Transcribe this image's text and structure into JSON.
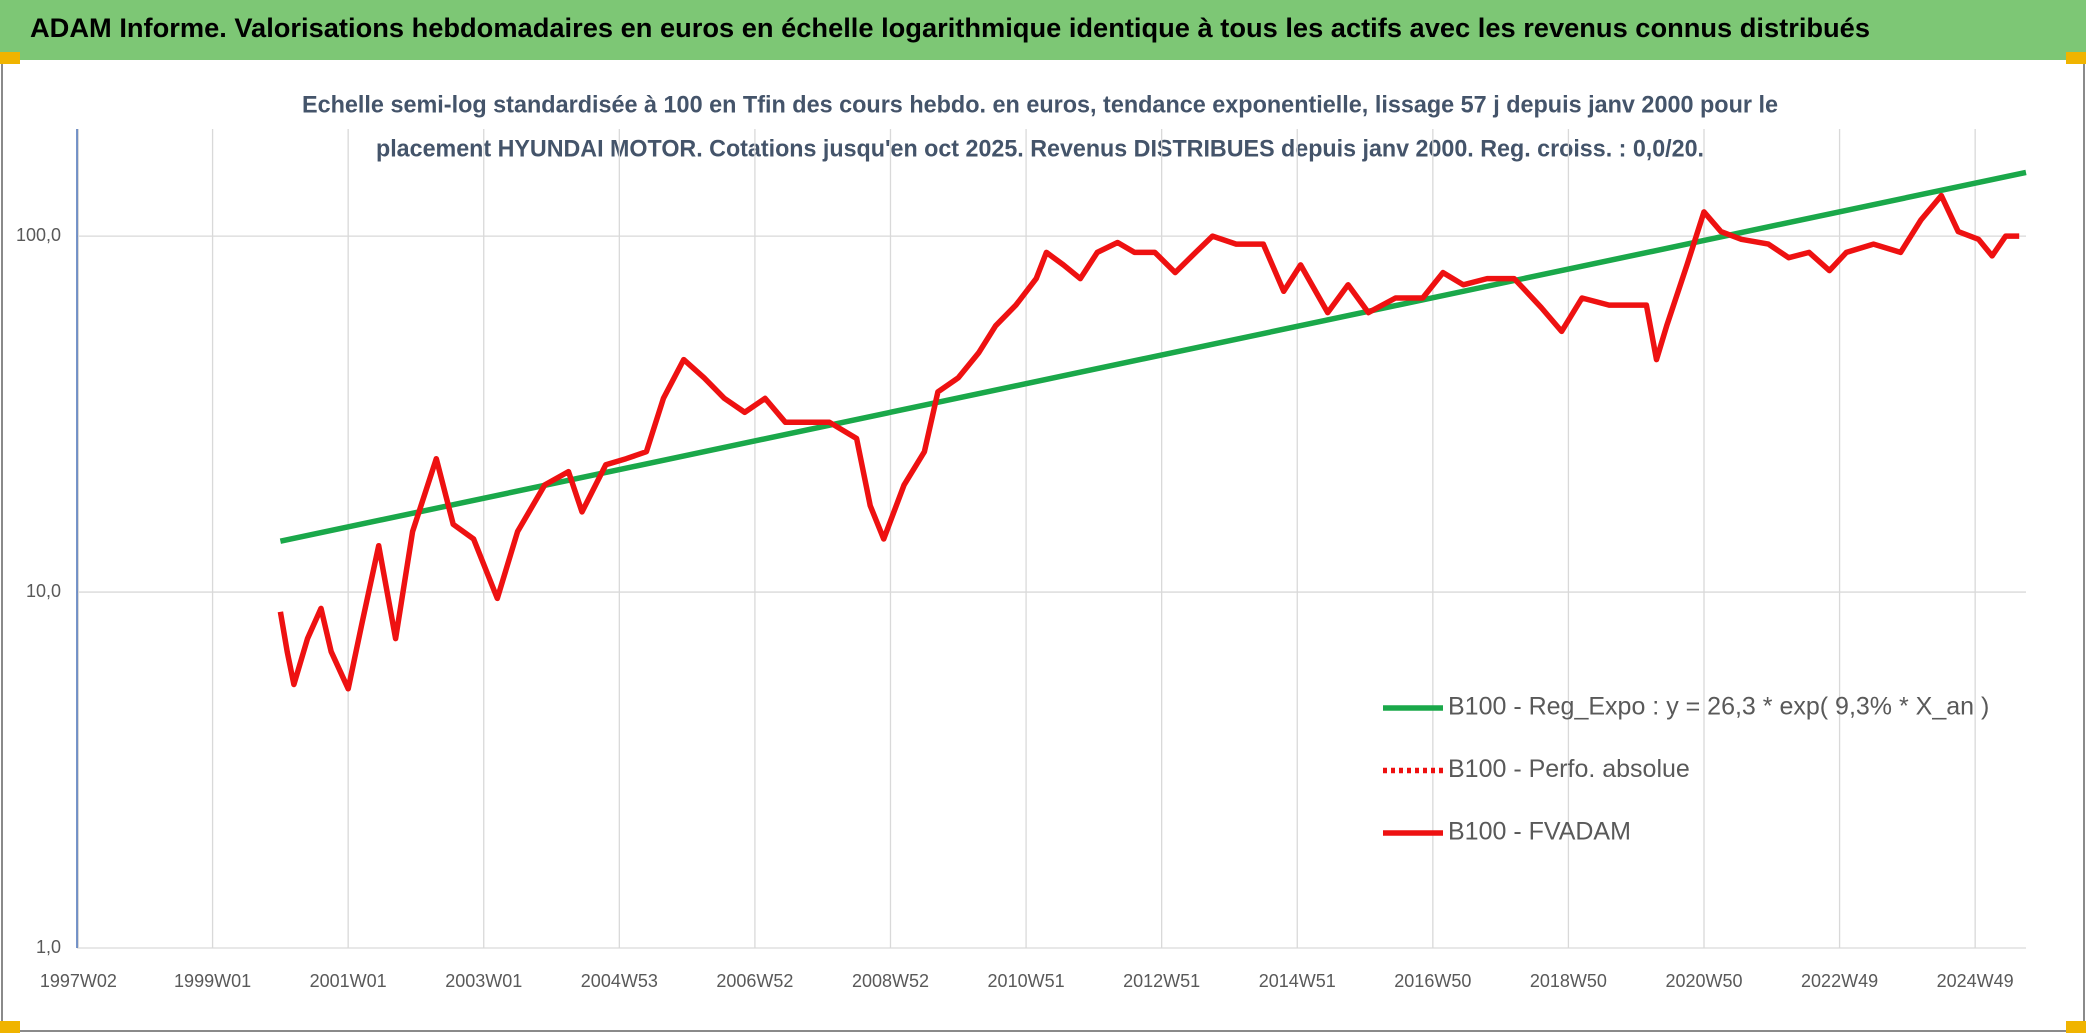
{
  "chart_data": {
    "type": "line",
    "title": "ADAM Informe. Valorisations hebdomadaires en euros en échelle logarithmique identique à tous les actifs avec les revenus connus distribués",
    "subtitle": [
      "Echelle semi-log standardisée à 100 en Tfin des cours hebdo. en euros, tendance exponentielle, lissage 57 j depuis janv 2000 pour le",
      "placement HYUNDAI MOTOR. Cotations jusqu'en oct 2025. Revenus DISTRIBUES depuis janv 2000. Reg. croiss. : 0,0/20."
    ],
    "log_scale": true,
    "grid": true,
    "legend_position": "lower-right",
    "xlim": [
      1997.0,
      2025.75
    ],
    "xticks": [
      {
        "value": 1997.02,
        "label": "1997W02"
      },
      {
        "value": 1999.0,
        "label": "1999W01"
      },
      {
        "value": 2001.0,
        "label": "2001W01"
      },
      {
        "value": 2003.0,
        "label": "2003W01"
      },
      {
        "value": 2005.0,
        "label": "2004W53"
      },
      {
        "value": 2007.0,
        "label": "2006W52"
      },
      {
        "value": 2009.0,
        "label": "2008W52"
      },
      {
        "value": 2011.0,
        "label": "2010W51"
      },
      {
        "value": 2013.0,
        "label": "2012W51"
      },
      {
        "value": 2015.0,
        "label": "2014W51"
      },
      {
        "value": 2017.0,
        "label": "2016W50"
      },
      {
        "value": 2019.0,
        "label": "2018W50"
      },
      {
        "value": 2021.0,
        "label": "2020W50"
      },
      {
        "value": 2023.0,
        "label": "2022W49"
      },
      {
        "value": 2025.0,
        "label": "2024W49"
      }
    ],
    "ylim": [
      1,
      200
    ],
    "yticks": [
      {
        "value": 1,
        "label": "1,0"
      },
      {
        "value": 10,
        "label": "10,0"
      },
      {
        "value": 100,
        "label": "100,0"
      }
    ],
    "series": [
      {
        "name": "B100 - Reg_Expo : y = 26,3 * exp( 9,3% *  X_an )",
        "color": "#1aa84a",
        "style": "solid",
        "x": [
          2000.0,
          2025.75
        ],
        "values": [
          13.9,
          151
        ]
      },
      {
        "name": "B100 - Perfo. absolue",
        "color": "#ee1111",
        "style": "dotted"
      },
      {
        "name": "B100 - FVADAM",
        "color": "#ee1111",
        "style": "solid",
        "x": [
          2000.0,
          2000.1,
          2000.2,
          2000.4,
          2000.6,
          2000.75,
          2001.0,
          2001.2,
          2001.45,
          2001.7,
          2001.95,
          2002.3,
          2002.55,
          2002.85,
          2003.2,
          2003.5,
          2003.9,
          2004.25,
          2004.45,
          2004.8,
          2005.1,
          2005.4,
          2005.65,
          2005.95,
          2006.25,
          2006.55,
          2006.85,
          2007.15,
          2007.45,
          2007.7,
          2008.1,
          2008.5,
          2008.7,
          2008.9,
          2009.2,
          2009.5,
          2009.7,
          2010.0,
          2010.3,
          2010.55,
          2010.85,
          2011.15,
          2011.3,
          2011.55,
          2011.8,
          2012.05,
          2012.35,
          2012.6,
          2012.9,
          2013.2,
          2013.5,
          2013.75,
          2014.1,
          2014.5,
          2014.8,
          2015.05,
          2015.45,
          2015.75,
          2016.05,
          2016.45,
          2016.85,
          2017.15,
          2017.45,
          2017.8,
          2018.2,
          2018.6,
          2018.9,
          2019.2,
          2019.6,
          2019.9,
          2020.15,
          2020.3,
          2020.45,
          2020.75,
          2021.0,
          2021.25,
          2021.55,
          2021.95,
          2022.25,
          2022.55,
          2022.85,
          2023.1,
          2023.5,
          2023.9,
          2024.2,
          2024.5,
          2024.75,
          2025.05,
          2025.25,
          2025.45,
          2025.65
        ],
        "values": [
          8.8,
          6.8,
          5.5,
          7.4,
          9.0,
          6.8,
          5.35,
          8.1,
          13.5,
          7.4,
          14.8,
          23.7,
          15.5,
          14.1,
          9.6,
          14.8,
          20,
          21.8,
          16.8,
          22.8,
          23.7,
          24.8,
          35,
          45,
          40,
          35,
          32,
          35,
          30,
          30,
          30,
          27,
          17.5,
          14.1,
          20,
          24.8,
          36.5,
          40,
          47,
          56,
          64,
          76,
          90,
          83,
          76,
          90,
          96,
          90,
          90,
          79,
          90,
          100,
          95,
          95,
          70,
          83,
          61,
          73,
          61,
          67,
          67,
          79,
          73,
          76,
          76,
          63,
          54,
          67,
          64,
          64,
          64,
          45,
          56,
          83,
          117,
          103,
          98,
          95,
          87,
          90,
          80,
          90,
          95,
          90,
          111,
          130,
          103,
          98,
          88,
          100,
          100
        ]
      }
    ]
  }
}
